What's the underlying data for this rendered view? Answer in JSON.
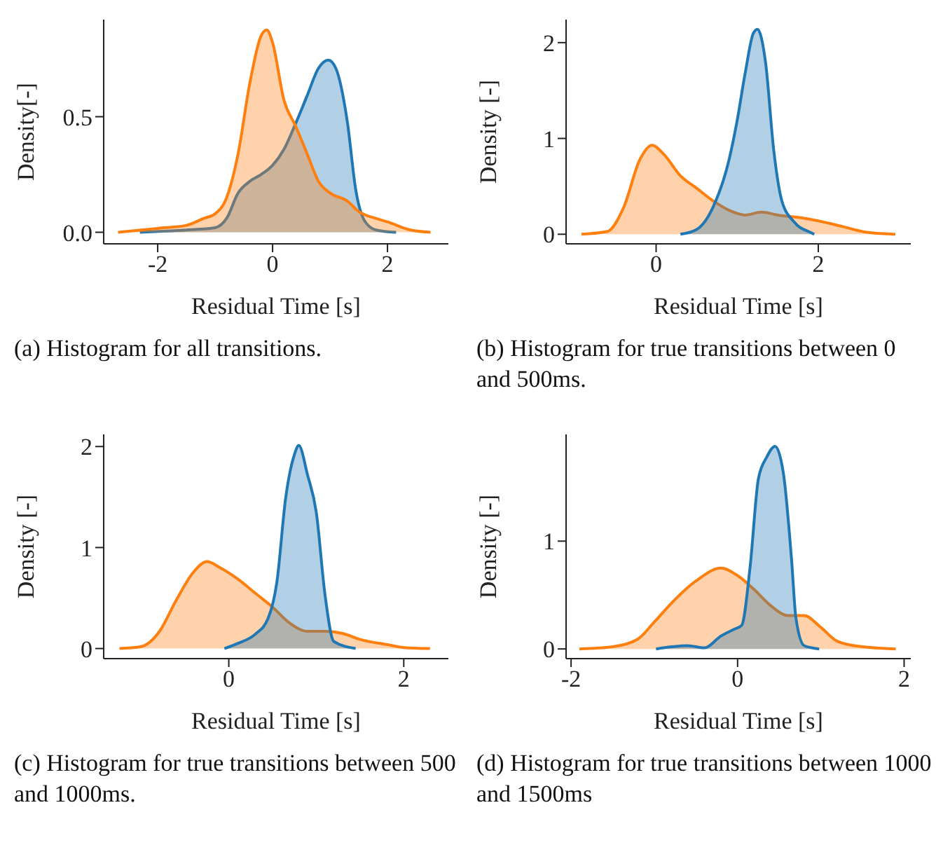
{
  "chart_data": [
    {
      "type": "area",
      "xlabel": "Residual Time [s]",
      "ylabel": "Density[-]",
      "xlim": [
        -2.94,
        3.06
      ],
      "ylim": [
        -0.05,
        0.92
      ],
      "xticks": [
        -2,
        0,
        2
      ],
      "yticks": [
        {
          "value": 0,
          "label": "0.0"
        },
        {
          "value": 0.5,
          "label": "0.5"
        }
      ],
      "annotations": [
        "(a) Histogram for all transitions."
      ],
      "series": [
        {
          "color": "#1f77b4",
          "x": [
            -2.31,
            -1.5,
            -1.0,
            -0.8,
            -0.6,
            -0.4,
            -0.2,
            0,
            0.2,
            0.4,
            0.6,
            0.8,
            0.97,
            1.1,
            1.3,
            1.45,
            1.6,
            1.8,
            2.15
          ],
          "values": [
            0,
            0.01,
            0.02,
            0.06,
            0.17,
            0.22,
            0.25,
            0.29,
            0.36,
            0.47,
            0.59,
            0.71,
            0.745,
            0.71,
            0.48,
            0.18,
            0.05,
            0.01,
            0
          ]
        },
        {
          "color": "#ff7f0e",
          "x": [
            -2.69,
            -2.0,
            -1.5,
            -1.2,
            -1.0,
            -0.8,
            -0.6,
            -0.4,
            -0.2,
            -0.1,
            0,
            0.2,
            0.4,
            0.6,
            0.8,
            1.0,
            1.3,
            1.5,
            1.8,
            2.0,
            2.4,
            2.75
          ],
          "values": [
            0,
            0.017,
            0.03,
            0.06,
            0.08,
            0.15,
            0.34,
            0.64,
            0.85,
            0.875,
            0.82,
            0.57,
            0.46,
            0.34,
            0.22,
            0.17,
            0.135,
            0.09,
            0.06,
            0.045,
            0.01,
            0
          ]
        }
      ]
    },
    {
      "type": "area",
      "xlabel": "Residual Time [s]",
      "ylabel": "Density [-]",
      "xlim": [
        -1.11,
        3.14
      ],
      "ylim": [
        -0.1,
        2.24
      ],
      "xticks": [
        0,
        2
      ],
      "yticks": [
        0,
        1,
        2
      ],
      "annotations": [
        "(b) Histogram for true transitions between 0 and 500ms."
      ],
      "series": [
        {
          "color": "#ff7f0e",
          "x": [
            -0.92,
            -0.6,
            -0.4,
            -0.2,
            -0.05,
            0.1,
            0.3,
            0.5,
            0.7,
            0.9,
            1.1,
            1.3,
            1.5,
            1.8,
            2.0,
            2.3,
            2.6,
            2.95
          ],
          "values": [
            0,
            0.03,
            0.28,
            0.78,
            0.93,
            0.83,
            0.61,
            0.48,
            0.35,
            0.25,
            0.2,
            0.23,
            0.2,
            0.17,
            0.14,
            0.08,
            0.02,
            0
          ]
        },
        {
          "color": "#1f77b4",
          "x": [
            0.3,
            0.5,
            0.7,
            0.9,
            1.0,
            1.1,
            1.2,
            1.25,
            1.35,
            1.45,
            1.55,
            1.7,
            1.9,
            1.95
          ],
          "values": [
            0,
            0.05,
            0.28,
            0.78,
            1.19,
            1.69,
            2.1,
            2.14,
            1.79,
            0.88,
            0.35,
            0.13,
            0.02,
            0
          ]
        }
      ]
    },
    {
      "type": "area",
      "xlabel": "Residual Time [s]",
      "ylabel": "Density [-]",
      "xlim": [
        -1.43,
        2.51
      ],
      "ylim": [
        -0.1,
        2.12
      ],
      "xticks": [
        0,
        2
      ],
      "yticks": [
        0,
        1,
        2
      ],
      "annotations": [
        "(c) Histogram for true transitions between 500 and 1000ms."
      ],
      "series": [
        {
          "color": "#ff7f0e",
          "x": [
            -1.25,
            -1.0,
            -0.8,
            -0.6,
            -0.4,
            -0.25,
            -0.1,
            0.1,
            0.3,
            0.5,
            0.7,
            0.9,
            1.1,
            1.3,
            1.5,
            1.8,
            2.0,
            2.3
          ],
          "values": [
            0,
            0.02,
            0.16,
            0.48,
            0.76,
            0.86,
            0.8,
            0.69,
            0.55,
            0.41,
            0.25,
            0.17,
            0.17,
            0.15,
            0.09,
            0.04,
            0.01,
            0
          ]
        },
        {
          "color": "#1f77b4",
          "x": [
            -0.05,
            0.1,
            0.3,
            0.45,
            0.55,
            0.65,
            0.75,
            0.8,
            0.9,
            1.0,
            1.1,
            1.2,
            1.45
          ],
          "values": [
            0,
            0.05,
            0.14,
            0.3,
            0.66,
            1.49,
            1.92,
            2.01,
            1.72,
            1.35,
            0.53,
            0.07,
            0
          ]
        }
      ]
    },
    {
      "type": "area",
      "xlabel": "Residual Time [s]",
      "ylabel": "Density [-]",
      "xlim": [
        -2.06,
        2.08
      ],
      "ylim": [
        -0.09,
        1.99
      ],
      "xticks": [
        -2,
        0,
        2
      ],
      "yticks": [
        0,
        1
      ],
      "annotations": [
        "(d) Histogram for true transitions between 1000 and 1500ms"
      ],
      "series": [
        {
          "color": "#ff7f0e",
          "x": [
            -1.9,
            -1.5,
            -1.2,
            -1.0,
            -0.8,
            -0.5,
            -0.2,
            0,
            0.2,
            0.4,
            0.6,
            0.8,
            1.0,
            1.2,
            1.5,
            1.9
          ],
          "values": [
            0,
            0.02,
            0.09,
            0.25,
            0.42,
            0.63,
            0.75,
            0.68,
            0.55,
            0.4,
            0.31,
            0.31,
            0.2,
            0.07,
            0.02,
            0
          ]
        },
        {
          "color": "#1f77b4",
          "x": [
            -0.98,
            -0.6,
            -0.4,
            -0.2,
            -0.05,
            0.05,
            0.15,
            0.25,
            0.35,
            0.45,
            0.55,
            0.65,
            0.7,
            0.8,
            0.98
          ],
          "values": [
            0,
            0.03,
            0.01,
            0.12,
            0.18,
            0.22,
            0.76,
            1.58,
            1.78,
            1.88,
            1.63,
            0.81,
            0.29,
            0.03,
            0
          ]
        }
      ]
    }
  ]
}
